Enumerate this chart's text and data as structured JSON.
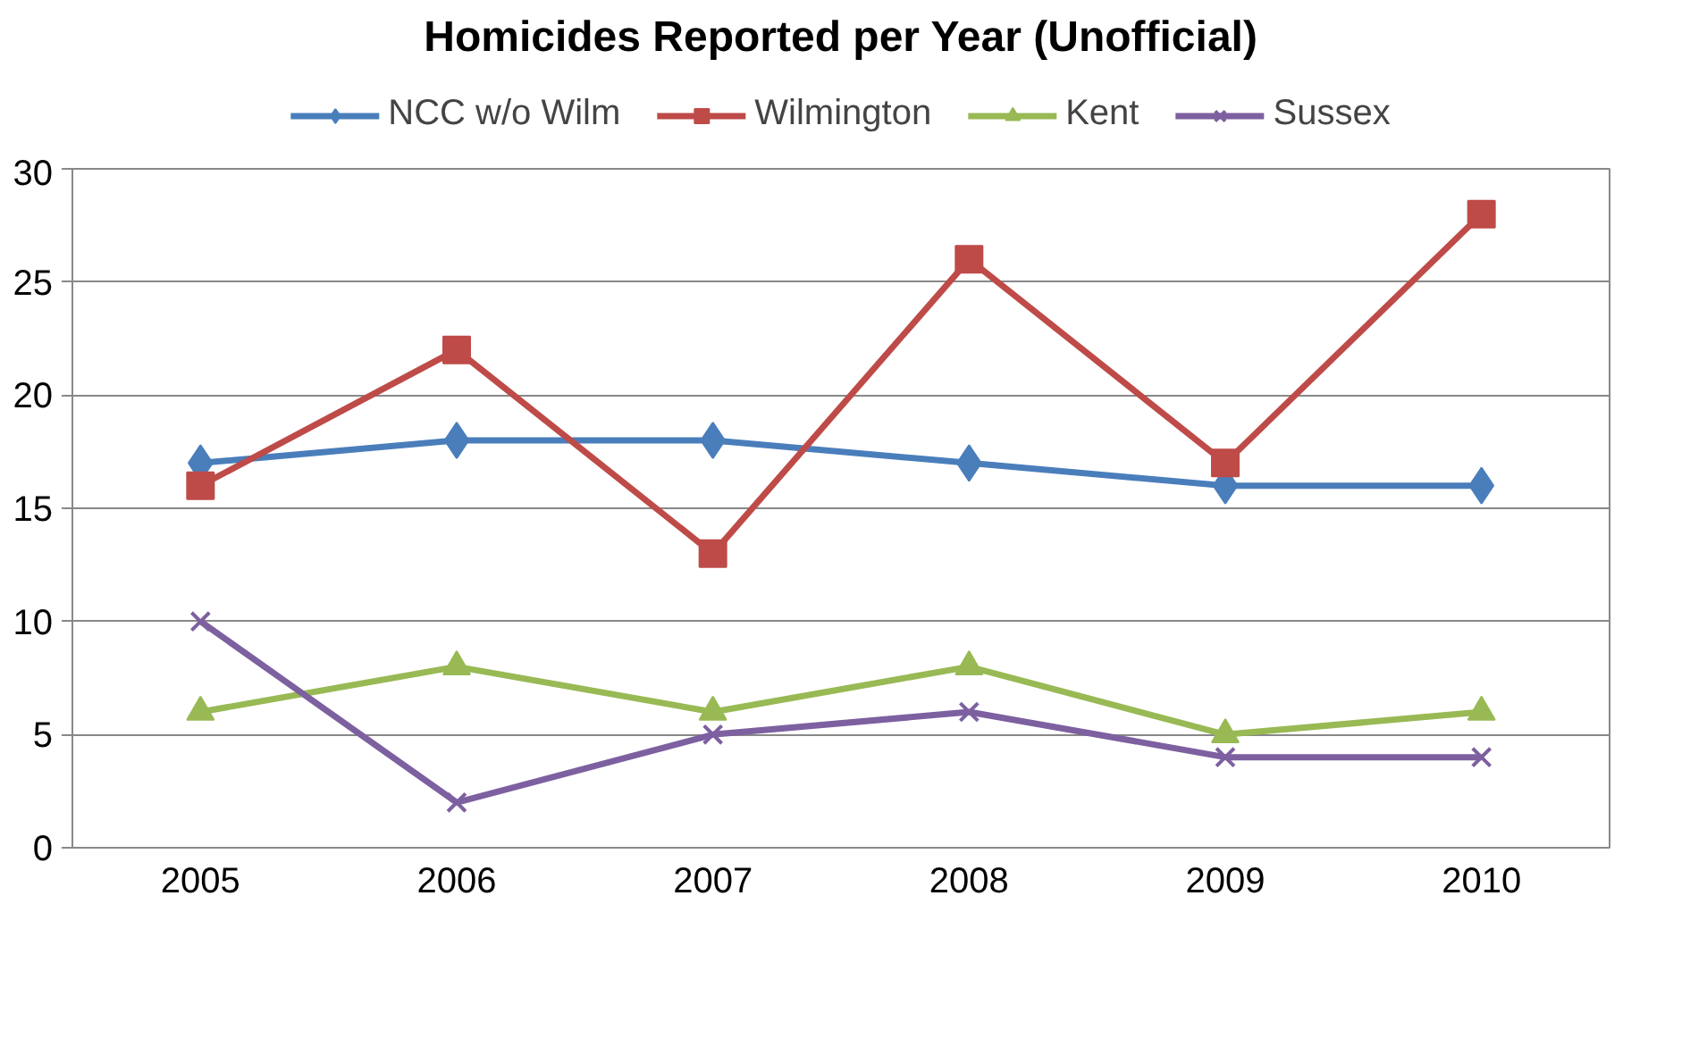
{
  "chart_data": {
    "type": "line",
    "title": "Homicides Reported per Year (Unofficial)",
    "categories": [
      "2005",
      "2006",
      "2007",
      "2008",
      "2009",
      "2010"
    ],
    "series": [
      {
        "name": "NCC w/o Wilm",
        "color": "#4a7ebb",
        "marker": "diamond",
        "values": [
          17,
          18,
          18,
          17,
          16,
          16
        ]
      },
      {
        "name": "Wilmington",
        "color": "#be4b48",
        "marker": "square",
        "values": [
          16,
          22,
          13,
          26,
          17,
          28
        ]
      },
      {
        "name": "Kent",
        "color": "#98b954",
        "marker": "triangle",
        "values": [
          6,
          8,
          6,
          8,
          5,
          6
        ]
      },
      {
        "name": "Sussex",
        "color": "#7d60a0",
        "marker": "cross",
        "values": [
          10,
          2,
          5,
          6,
          4,
          4
        ]
      }
    ],
    "ylim": [
      0,
      30
    ],
    "yticks": [
      0,
      5,
      10,
      15,
      20,
      25,
      30
    ],
    "grid": "y",
    "legend": "top",
    "line_style": "solid"
  }
}
